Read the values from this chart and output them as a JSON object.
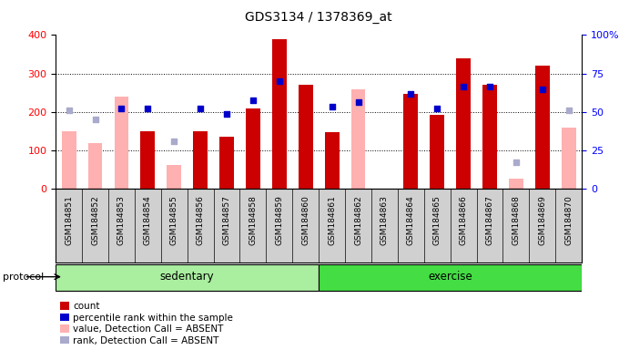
{
  "title": "GDS3134 / 1378369_at",
  "samples": [
    "GSM184851",
    "GSM184852",
    "GSM184853",
    "GSM184854",
    "GSM184855",
    "GSM184856",
    "GSM184857",
    "GSM184858",
    "GSM184859",
    "GSM184860",
    "GSM184861",
    "GSM184862",
    "GSM184863",
    "GSM184864",
    "GSM184865",
    "GSM184866",
    "GSM184867",
    "GSM184868",
    "GSM184869",
    "GSM184870"
  ],
  "red_bars": [
    null,
    null,
    null,
    150,
    null,
    150,
    135,
    210,
    390,
    270,
    148,
    null,
    null,
    248,
    193,
    340,
    270,
    null,
    320,
    null
  ],
  "pink_bars": [
    150,
    120,
    240,
    null,
    62,
    null,
    null,
    null,
    null,
    null,
    null,
    260,
    null,
    null,
    null,
    null,
    null,
    28,
    null,
    160
  ],
  "blue_squares": [
    null,
    null,
    210,
    210,
    null,
    210,
    195,
    230,
    280,
    null,
    215,
    225,
    null,
    248,
    210,
    265,
    265,
    null,
    258,
    null
  ],
  "light_blue_sq": [
    205,
    180,
    null,
    null,
    125,
    null,
    null,
    null,
    null,
    null,
    null,
    null,
    null,
    null,
    null,
    null,
    null,
    70,
    null,
    205
  ],
  "sedentary_count": 10,
  "ylim_left": [
    0,
    400
  ],
  "yticks_left": [
    0,
    100,
    200,
    300,
    400
  ],
  "yticks_right": [
    0,
    25,
    50,
    75,
    100
  ],
  "grid_values": [
    100,
    200,
    300
  ],
  "red_bar_color": "#cc0000",
  "pink_bar_color": "#ffb0b0",
  "blue_sq_color": "#0000cc",
  "light_blue_color": "#aaaacc",
  "green_light": "#aaeea0",
  "green_dark": "#44dd44",
  "gray_bg": "#d0d0d0",
  "bar_width": 0.55
}
